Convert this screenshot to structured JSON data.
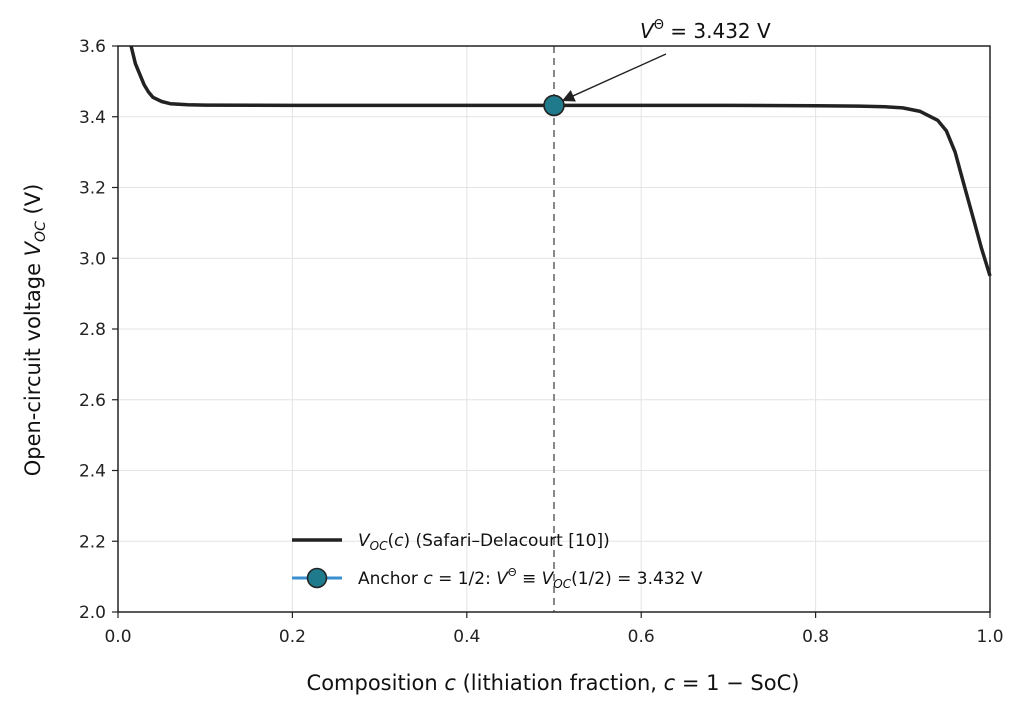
{
  "chart_data": {
    "type": "line",
    "title": "",
    "xlabel": "Composition  c  (lithiation fraction, c = 1 − SoC)",
    "ylabel": "Open-circuit voltage  V_OC  (V)",
    "xlim": [
      0.0,
      1.0
    ],
    "ylim": [
      2.0,
      3.6
    ],
    "xticks": [
      "0.0",
      "0.2",
      "0.4",
      "0.6",
      "0.8",
      "1.0"
    ],
    "yticks": [
      "2.0",
      "2.2",
      "2.4",
      "2.6",
      "2.8",
      "3.0",
      "3.2",
      "3.4",
      "3.6"
    ],
    "grid": true,
    "legend_position": "lower-center",
    "series": [
      {
        "name": "V_OC(c)  (Safari–Delacourt [10])",
        "color": "#222222",
        "x": [
          0.015,
          0.02,
          0.025,
          0.03,
          0.035,
          0.04,
          0.05,
          0.06,
          0.08,
          0.1,
          0.2,
          0.3,
          0.4,
          0.5,
          0.6,
          0.7,
          0.8,
          0.85,
          0.88,
          0.9,
          0.92,
          0.94,
          0.95,
          0.96,
          0.97,
          0.98,
          0.99,
          1.0
        ],
        "y": [
          3.6,
          3.55,
          3.52,
          3.49,
          3.47,
          3.455,
          3.443,
          3.437,
          3.434,
          3.433,
          3.432,
          3.432,
          3.432,
          3.432,
          3.432,
          3.432,
          3.431,
          3.43,
          3.428,
          3.425,
          3.415,
          3.39,
          3.36,
          3.3,
          3.21,
          3.12,
          3.03,
          2.95
        ]
      }
    ],
    "anchor": {
      "name": "Anchor c = 1/2:  V^Θ ≡ V_OC(1/2) = 3.432 V",
      "x": 0.5,
      "y": 3.432,
      "color": "#1f7a8c"
    },
    "vline": {
      "x": 0.5,
      "style": "dashed"
    },
    "annotation": {
      "text": "V^Θ = 3.432 V",
      "x": 0.5,
      "y": 3.432
    }
  }
}
